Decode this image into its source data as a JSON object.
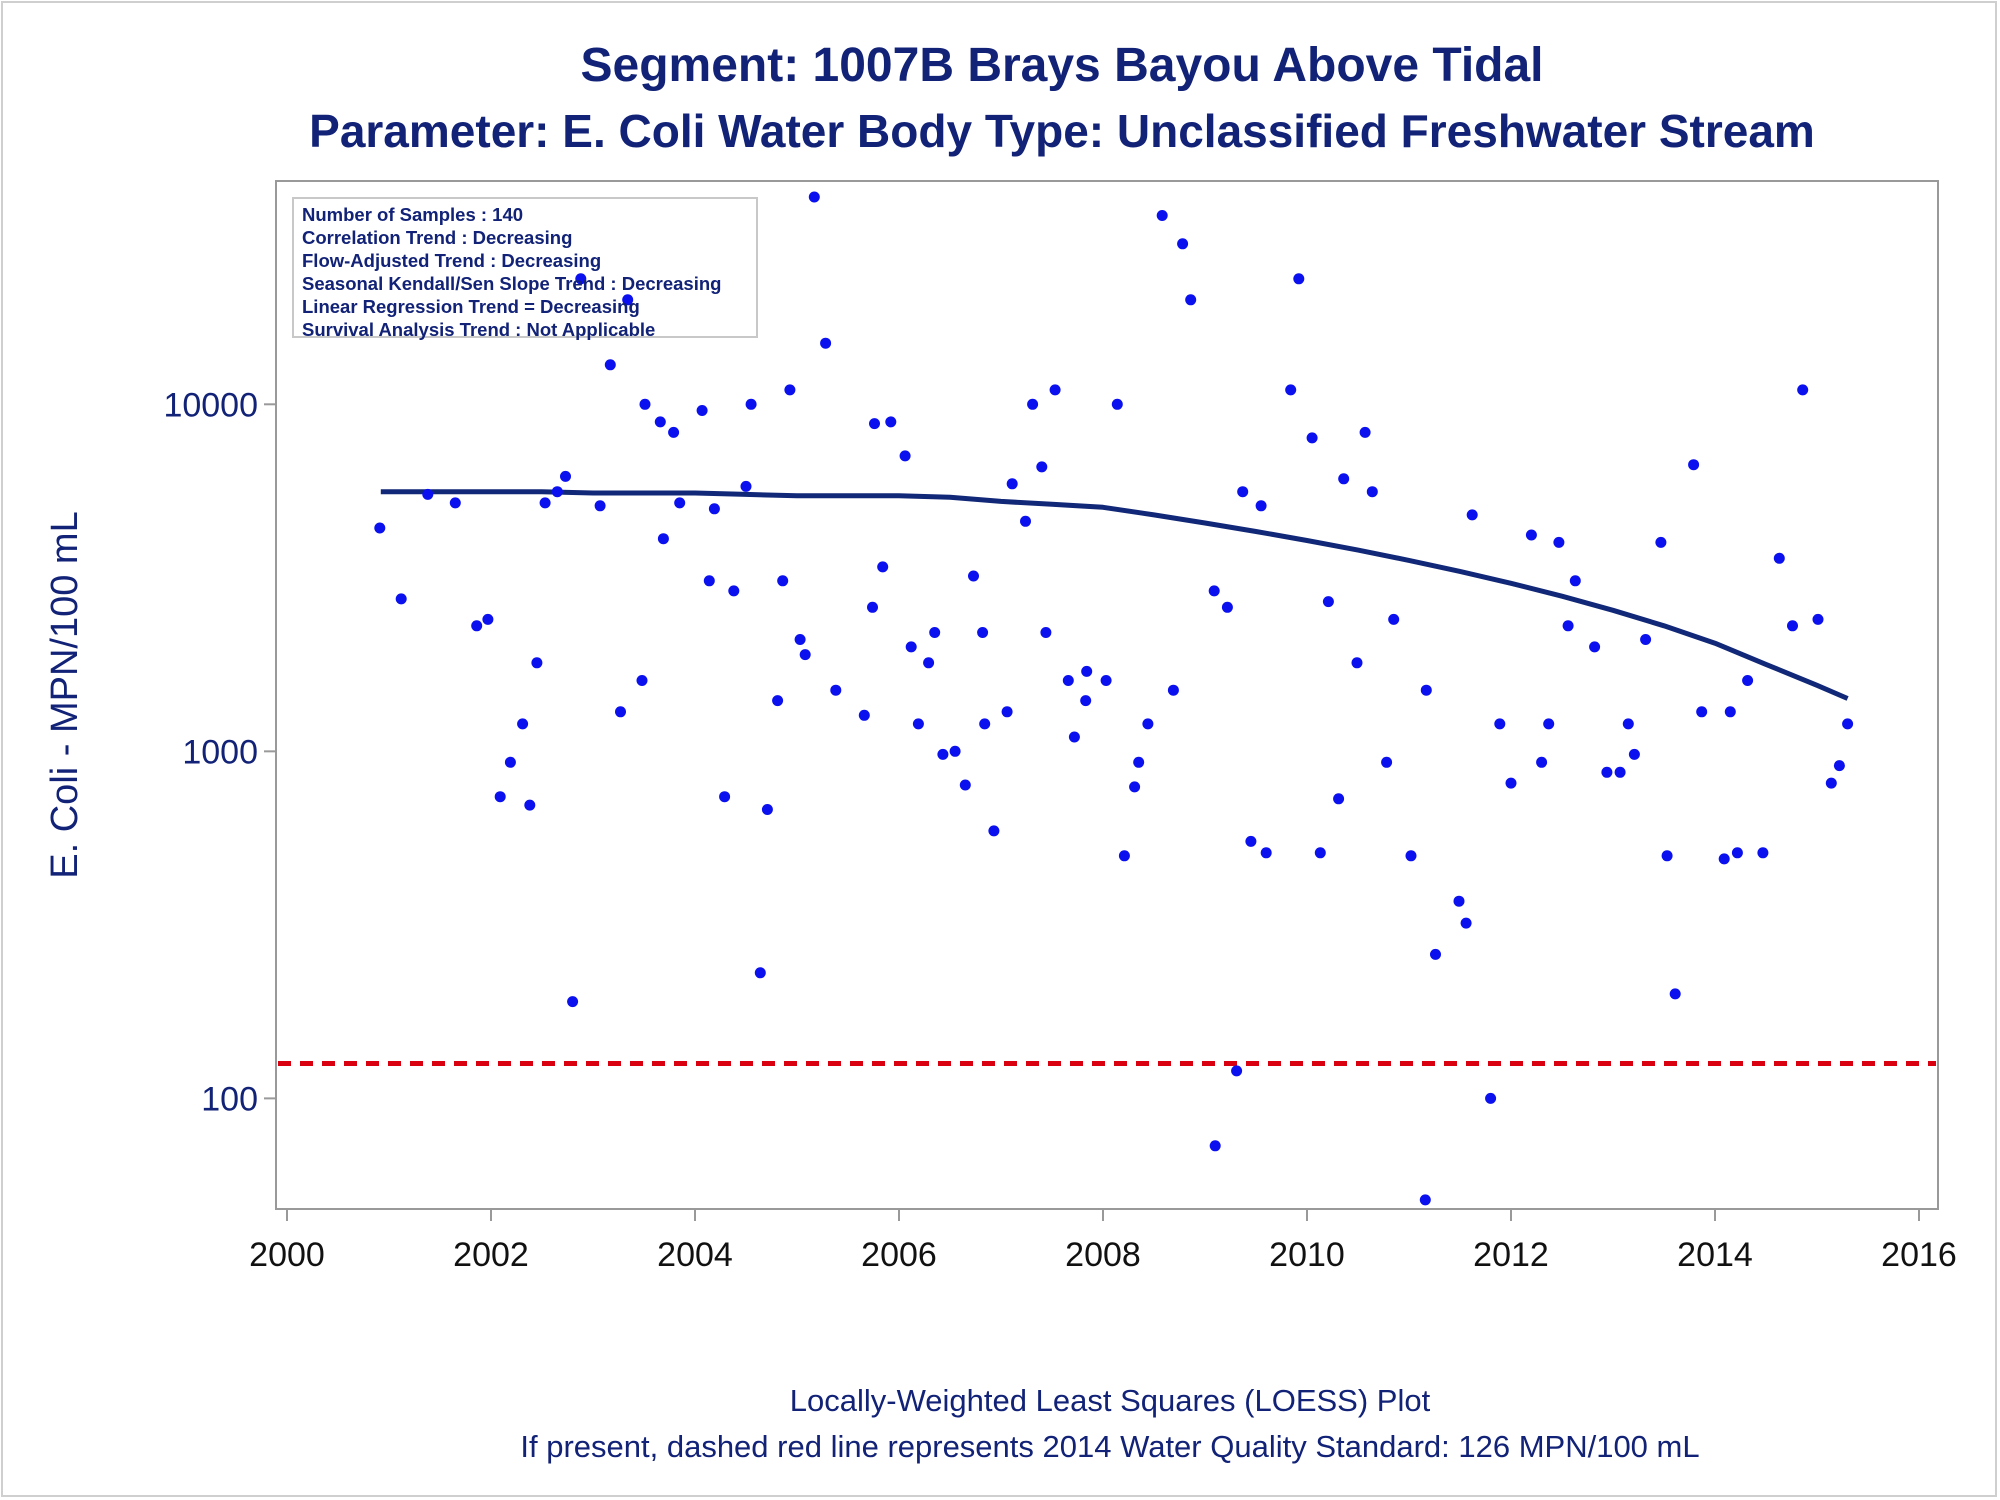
{
  "chart_data": {
    "type": "scatter",
    "title": "Segment: 1007B  Brays Bayou Above Tidal",
    "subtitle": "Parameter: E. Coli   Water Body Type: Unclassified Freshwater Stream",
    "xlabel": "",
    "ylabel": "E. Coli - MPN/100 mL",
    "xlim": [
      2000,
      2016
    ],
    "ylim": [
      48,
      44000
    ],
    "yscale": "log",
    "xticks": [
      2000,
      2002,
      2004,
      2006,
      2008,
      2010,
      2012,
      2014,
      2016
    ],
    "yticks": [
      100,
      1000,
      10000
    ],
    "grid": false,
    "colors": {
      "points": "#0a10ee",
      "loess": "#112777",
      "standard": "#d9000f",
      "text": "#112277",
      "axis": "#999999"
    },
    "stats": [
      "Number of Samples : 140",
      "Correlation Trend : Decreasing",
      "Flow-Adjusted Trend : Decreasing",
      "Seasonal Kendall/Sen Slope Trend : Decreasing",
      "Linear Regression Trend = Decreasing",
      "Survival Analysis Trend : Not Applicable"
    ],
    "standard_line": {
      "value": 126
    },
    "series": [
      {
        "type": "scatter",
        "points": [
          [
            2000.91,
            4400
          ],
          [
            2001.12,
            2750
          ],
          [
            2001.38,
            5500
          ],
          [
            2001.65,
            5200
          ],
          [
            2001.86,
            2300
          ],
          [
            2001.97,
            2400
          ],
          [
            2002.09,
            740
          ],
          [
            2002.19,
            930
          ],
          [
            2002.31,
            1200
          ],
          [
            2002.38,
            700
          ],
          [
            2002.45,
            1800
          ],
          [
            2002.53,
            5200
          ],
          [
            2002.65,
            5600
          ],
          [
            2002.73,
            6200
          ],
          [
            2002.8,
            190
          ],
          [
            2002.88,
            23000
          ],
          [
            2003.07,
            5100
          ],
          [
            2003.17,
            13000
          ],
          [
            2003.27,
            1300
          ],
          [
            2003.34,
            20000
          ],
          [
            2003.48,
            1600
          ],
          [
            2003.51,
            10000
          ],
          [
            2003.66,
            8900
          ],
          [
            2003.69,
            4100
          ],
          [
            2003.79,
            8300
          ],
          [
            2003.85,
            5200
          ],
          [
            2004.07,
            9600
          ],
          [
            2004.14,
            3100
          ],
          [
            2004.19,
            5000
          ],
          [
            2004.29,
            740
          ],
          [
            2004.38,
            2900
          ],
          [
            2004.5,
            5800
          ],
          [
            2004.55,
            10000
          ],
          [
            2004.64,
            230
          ],
          [
            2004.71,
            680
          ],
          [
            2004.81,
            1400
          ],
          [
            2004.86,
            3100
          ],
          [
            2004.93,
            11000
          ],
          [
            2005.03,
            2100
          ],
          [
            2005.08,
            1900
          ],
          [
            2005.17,
            48000
          ],
          [
            2005.28,
            15000
          ],
          [
            2005.38,
            1500
          ],
          [
            2005.66,
            1270
          ],
          [
            2005.74,
            2600
          ],
          [
            2005.76,
            8800
          ],
          [
            2005.84,
            3400
          ],
          [
            2005.92,
            8900
          ],
          [
            2006.06,
            7100
          ],
          [
            2006.12,
            2000
          ],
          [
            2006.19,
            1200
          ],
          [
            2006.29,
            1800
          ],
          [
            2006.35,
            2200
          ],
          [
            2006.43,
            980
          ],
          [
            2006.55,
            1000
          ],
          [
            2006.65,
            800
          ],
          [
            2006.73,
            3200
          ],
          [
            2006.82,
            2200
          ],
          [
            2006.84,
            1200
          ],
          [
            2006.93,
            590
          ],
          [
            2007.06,
            1300
          ],
          [
            2007.11,
            5900
          ],
          [
            2007.24,
            4600
          ],
          [
            2007.31,
            10000
          ],
          [
            2007.4,
            6600
          ],
          [
            2007.44,
            2200
          ],
          [
            2007.53,
            11000
          ],
          [
            2007.66,
            1600
          ],
          [
            2007.72,
            1100
          ],
          [
            2007.83,
            1400
          ],
          [
            2007.84,
            1700
          ],
          [
            2008.03,
            1600
          ],
          [
            2008.14,
            10000
          ],
          [
            2008.21,
            500
          ],
          [
            2008.31,
            790
          ],
          [
            2008.35,
            930
          ],
          [
            2008.44,
            1200
          ],
          [
            2008.58,
            35000
          ],
          [
            2008.69,
            1500
          ],
          [
            2008.78,
            29000
          ],
          [
            2008.86,
            20000
          ],
          [
            2009.09,
            2900
          ],
          [
            2009.1,
            73
          ],
          [
            2009.22,
            2600
          ],
          [
            2009.31,
            120
          ],
          [
            2009.37,
            5600
          ],
          [
            2009.45,
            550
          ],
          [
            2009.55,
            5100
          ],
          [
            2009.6,
            510
          ],
          [
            2009.84,
            11000
          ],
          [
            2009.92,
            23000
          ],
          [
            2010.05,
            8000
          ],
          [
            2010.13,
            510
          ],
          [
            2010.21,
            2700
          ],
          [
            2010.31,
            730
          ],
          [
            2010.36,
            6100
          ],
          [
            2010.49,
            1800
          ],
          [
            2010.57,
            8300
          ],
          [
            2010.64,
            5600
          ],
          [
            2010.78,
            930
          ],
          [
            2010.85,
            2400
          ],
          [
            2011.02,
            500
          ],
          [
            2011.16,
            51
          ],
          [
            2011.17,
            1500
          ],
          [
            2011.26,
            260
          ],
          [
            2011.49,
            370
          ],
          [
            2011.56,
            320
          ],
          [
            2011.62,
            4800
          ],
          [
            2011.8,
            100
          ],
          [
            2011.89,
            1200
          ],
          [
            2012.0,
            810
          ],
          [
            2012.2,
            4200
          ],
          [
            2012.3,
            930
          ],
          [
            2012.37,
            1200
          ],
          [
            2012.47,
            4000
          ],
          [
            2012.56,
            2300
          ],
          [
            2012.63,
            3100
          ],
          [
            2012.82,
            2000
          ],
          [
            2012.94,
            870
          ],
          [
            2013.07,
            870
          ],
          [
            2013.15,
            1200
          ],
          [
            2013.21,
            980
          ],
          [
            2013.32,
            2100
          ],
          [
            2013.47,
            4000
          ],
          [
            2013.53,
            500
          ],
          [
            2013.61,
            200
          ],
          [
            2013.79,
            6700
          ],
          [
            2013.87,
            1300
          ],
          [
            2014.09,
            490
          ],
          [
            2014.15,
            1300
          ],
          [
            2014.22,
            510
          ],
          [
            2014.32,
            1600
          ],
          [
            2014.47,
            510
          ],
          [
            2014.63,
            3600
          ],
          [
            2014.76,
            2300
          ],
          [
            2014.86,
            11000
          ],
          [
            2015.01,
            2400
          ],
          [
            2015.14,
            810
          ],
          [
            2015.22,
            910
          ],
          [
            2015.3,
            1200
          ]
        ]
      },
      {
        "type": "line",
        "points": [
          [
            2000.92,
            5600
          ],
          [
            2001.5,
            5600
          ],
          [
            2002.0,
            5600
          ],
          [
            2002.5,
            5600
          ],
          [
            2003.0,
            5550
          ],
          [
            2003.5,
            5550
          ],
          [
            2004.0,
            5550
          ],
          [
            2004.5,
            5500
          ],
          [
            2005.0,
            5450
          ],
          [
            2005.5,
            5450
          ],
          [
            2006.0,
            5450
          ],
          [
            2006.5,
            5400
          ],
          [
            2007.0,
            5250
          ],
          [
            2007.5,
            5150
          ],
          [
            2008.0,
            5050
          ],
          [
            2008.5,
            4800
          ],
          [
            2009.0,
            4550
          ],
          [
            2009.5,
            4300
          ],
          [
            2010.0,
            4050
          ],
          [
            2010.5,
            3800
          ],
          [
            2011.0,
            3550
          ],
          [
            2011.5,
            3300
          ],
          [
            2012.0,
            3050
          ],
          [
            2012.5,
            2800
          ],
          [
            2013.0,
            2550
          ],
          [
            2013.5,
            2300
          ],
          [
            2014.0,
            2050
          ],
          [
            2014.5,
            1780
          ],
          [
            2015.0,
            1550
          ],
          [
            2015.3,
            1420
          ]
        ]
      }
    ],
    "footnotes": [
      "Locally-Weighted Least Squares (LOESS) Plot",
      "If present, dashed red line represents 2014 Water Quality Standard: 126 MPN/100 mL"
    ]
  }
}
